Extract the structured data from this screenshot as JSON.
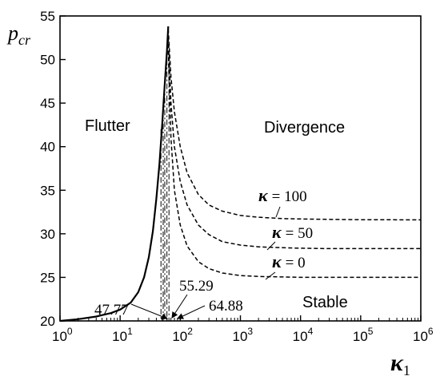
{
  "chart_data": {
    "type": "line",
    "ylabel": {
      "main": "p",
      "sub": "cr"
    },
    "xlabel": {
      "main": "κ",
      "sub": "1"
    },
    "xscale": "log",
    "xlim": [
      1,
      1000000
    ],
    "ylim": [
      20,
      55
    ],
    "x_tick_exponents": [
      "0",
      "1",
      "2",
      "3",
      "4",
      "5",
      "6"
    ],
    "x_tick_base": "10",
    "y_ticks": [
      20,
      25,
      30,
      35,
      40,
      45,
      50,
      55
    ],
    "regions": {
      "flutter": "Flutter",
      "divergence": "Divergence",
      "stable": "Stable"
    },
    "series": [
      {
        "kind": "flutter-boundary",
        "style": "solid",
        "x": [
          1,
          2,
          4,
          7,
          10,
          15,
          20,
          25,
          30,
          35,
          40,
          45,
          50,
          55,
          60,
          63
        ],
        "y": [
          20.0,
          20.2,
          20.5,
          20.9,
          21.3,
          22.1,
          23.3,
          25.0,
          27.3,
          30.3,
          34.0,
          38.0,
          42.5,
          47.0,
          51.0,
          53.8
        ]
      },
      {
        "name_prefix": "κ",
        "name_value": "= 100",
        "style": "dashed",
        "x": [
          63,
          70,
          80,
          100,
          130,
          200,
          300,
          500,
          1000,
          2000,
          5000,
          10000,
          30000,
          100000,
          1000000
        ],
        "y": [
          53.5,
          48.0,
          44.0,
          40.0,
          37.0,
          34.5,
          33.3,
          32.6,
          32.1,
          31.9,
          31.75,
          31.7,
          31.65,
          31.62,
          31.6
        ]
      },
      {
        "name_prefix": "κ",
        "name_value": "= 50",
        "style": "dashed",
        "x": [
          63,
          70,
          80,
          100,
          130,
          200,
          300,
          500,
          1000,
          2000,
          5000,
          10000,
          30000,
          100000,
          1000000
        ],
        "y": [
          52.5,
          45.0,
          40.0,
          36.0,
          33.3,
          31.0,
          29.9,
          29.1,
          28.7,
          28.5,
          28.4,
          28.35,
          28.3,
          28.3,
          28.3
        ]
      },
      {
        "name_prefix": "κ",
        "name_value": "= 0",
        "style": "dashed",
        "x": [
          63,
          70,
          80,
          100,
          130,
          200,
          300,
          500,
          1000,
          2000,
          5000,
          10000,
          30000,
          100000,
          1000000
        ],
        "y": [
          51.0,
          41.0,
          35.0,
          31.0,
          28.6,
          26.8,
          26.0,
          25.5,
          25.2,
          25.1,
          25.05,
          25.0,
          25.0,
          25.0,
          25.0
        ]
      }
    ],
    "vertical_lines": [
      {
        "x": 47.77,
        "y_top": 42,
        "style": "dashdot"
      },
      {
        "x": 52,
        "y_top": 44,
        "style": "dashdot"
      },
      {
        "x": 55.29,
        "y_top": 47,
        "style": "dashdot"
      },
      {
        "x": 60,
        "y_top": 50,
        "style": "dashdot"
      },
      {
        "x": 64.88,
        "y_top": 52,
        "style": "dashdot"
      }
    ],
    "annotations": [
      {
        "text": "47.77",
        "x": 47.77
      },
      {
        "text": "55.29",
        "x": 55.29
      },
      {
        "text": "64.88",
        "x": 64.88
      }
    ],
    "grid": false,
    "legend": "none"
  }
}
